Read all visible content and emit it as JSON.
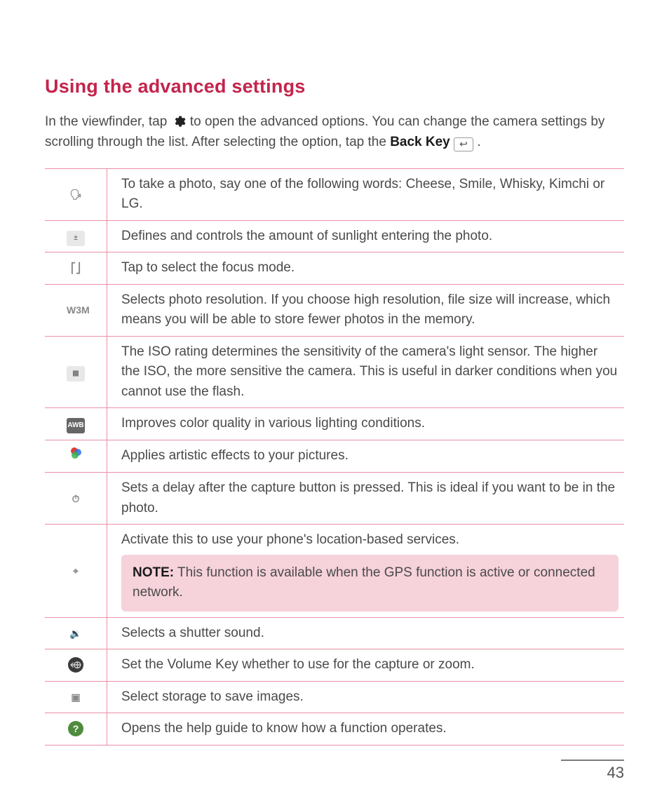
{
  "heading": "Using the advanced settings",
  "intro": {
    "part1": "In the viewfinder, tap ",
    "gear_icon_name": "gear-icon",
    "part2": " to open the advanced options. You can change the camera settings by scrolling through the list. After selecting the option, tap the ",
    "back_key_label": "Back Key",
    "back_key_glyph": "↩",
    "part3": "."
  },
  "rows": [
    {
      "icon_label": "🗣",
      "icon_class": "no-bg",
      "icon_name": "voice-shutter-icon",
      "desc": "To take a photo, say one of the following words: Cheese, Smile, Whisky, Kimchi or LG."
    },
    {
      "icon_label": "±",
      "icon_class": "",
      "icon_name": "exposure-icon",
      "desc": "Defines and controls the amount of sunlight entering the photo."
    },
    {
      "icon_label": "⎡⎦",
      "icon_class": "no-bg",
      "icon_name": "focus-mode-icon",
      "desc": "Tap to select the focus mode."
    },
    {
      "icon_label": "W3M",
      "icon_class": "no-bg",
      "icon_name": "resolution-icon",
      "desc": "Selects photo resolution. If you choose high resolution, file size will increase, which means you will be able to store fewer photos in the memory."
    },
    {
      "icon_label": "▦",
      "icon_class": "",
      "icon_name": "iso-icon",
      "desc": "The ISO rating determines the sensitivity of the camera's light sensor. The higher the ISO, the more sensitive the camera. This is useful in darker conditions when you cannot use the flash."
    },
    {
      "icon_label": "AWB",
      "icon_class": "dark",
      "icon_name": "white-balance-icon",
      "desc": "Improves color quality in various lighting conditions."
    },
    {
      "icon_label": "◕",
      "icon_class": "colorful",
      "icon_name": "color-effect-icon",
      "desc": "Applies artistic effects to your pictures."
    },
    {
      "icon_label": "⏱",
      "icon_class": "no-bg",
      "icon_name": "timer-icon",
      "desc": "Sets a delay after the capture button is pressed. This is ideal if you want to be in the photo."
    },
    {
      "icon_label": "⌖",
      "icon_class": "no-bg",
      "icon_name": "geotag-icon",
      "desc": "Activate this to use your phone's location-based services.",
      "note_label": "NOTE:",
      "note_text": " This function is available when the GPS function is active or connected network."
    },
    {
      "icon_label": "🔉",
      "icon_class": "no-bg",
      "icon_name": "shutter-sound-icon",
      "desc": "Selects a shutter sound."
    },
    {
      "icon_label": "⬲",
      "icon_class": "round",
      "icon_name": "volume-key-icon",
      "desc": "Set the Volume Key whether to use for the capture or zoom."
    },
    {
      "icon_label": "▣",
      "icon_class": "no-bg",
      "icon_name": "storage-icon",
      "desc": "Select storage to save images."
    },
    {
      "icon_label": "?",
      "icon_class": "qmark",
      "icon_name": "help-icon",
      "desc": "Opens the help guide to know how a function operates."
    }
  ],
  "page_number": "43",
  "colors": {
    "accent": "#c3244c",
    "table_border": "#ea8fa6",
    "note_bg": "#f6d2db",
    "body_text": "#4a4a4a"
  }
}
